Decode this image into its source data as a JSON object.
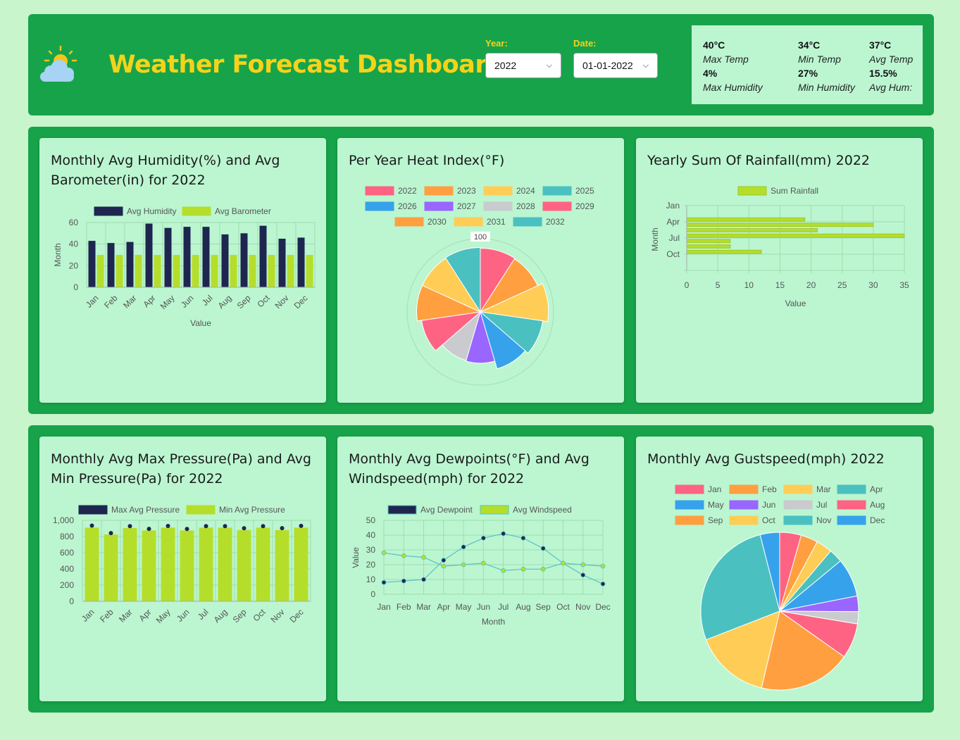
{
  "header": {
    "title": "Weather Forecast Dashboard",
    "year_label": "Year:",
    "year_value": "2022",
    "date_label": "Date:",
    "date_value": "01-01-2022"
  },
  "summary": [
    {
      "value": "40°C",
      "label": "Max Temp"
    },
    {
      "value": "34°C",
      "label": "Min Temp"
    },
    {
      "value": "37°C",
      "label": "Avg Temp"
    },
    {
      "value": "4%",
      "label": "Max Humidity"
    },
    {
      "value": "27%",
      "label": "Min Humidity"
    },
    {
      "value": "15.5%",
      "label": "Avg Hum:"
    }
  ],
  "cards": {
    "humidity_title": "Monthly Avg Humidity(%) and Avg Barometer(in) for 2022",
    "heat_title": "Per Year Heat Index(°F)",
    "rain_title": "Yearly Sum Of Rainfall(mm) 2022",
    "pressure_title": "Monthly Avg Max Pressure(Pa) and Avg Min Pressure(Pa) for 2022",
    "dew_title": "Monthly Avg Dewpoints(°F) and Avg Windspeed(mph) for 2022",
    "gust_title": "Monthly Avg Gustspeed(mph) 2022"
  },
  "chart_data": [
    {
      "id": "humidity",
      "type": "bar",
      "categories": [
        "Jan",
        "Feb",
        "Mar",
        "Apr",
        "May",
        "Jun",
        "Jul",
        "Aug",
        "Sep",
        "Oct",
        "Nov",
        "Dec"
      ],
      "series": [
        {
          "name": "Avg Humidity",
          "color": "#1e2650",
          "values": [
            43,
            41,
            42,
            59,
            55,
            56,
            56,
            49,
            50,
            57,
            45,
            46
          ]
        },
        {
          "name": "Avg Barometer",
          "color": "#b5de2b",
          "values": [
            30,
            30,
            30,
            30,
            30,
            30,
            30,
            30,
            30,
            30,
            30,
            30
          ]
        }
      ],
      "xlabel": "Value",
      "ylabel": "Month",
      "ylim": [
        0,
        60
      ],
      "yticks": [
        "0",
        "20",
        "40",
        "60"
      ]
    },
    {
      "id": "heat",
      "type": "polar-area",
      "categories": [
        "2022",
        "2023",
        "2024",
        "2025",
        "2026",
        "2027",
        "2028",
        "2029",
        "2030",
        "2031",
        "2032"
      ],
      "colors": [
        "#ff6384",
        "#ff9f40",
        "#ffcd56",
        "#4bc0c0",
        "#36a2eb",
        "#9966ff",
        "#c9cbcf",
        "#ff6384",
        "#ff9f40",
        "#ffcd56",
        "#4bc0c0"
      ],
      "values": [
        87,
        86,
        93,
        86,
        81,
        70,
        69,
        81,
        87,
        87,
        88
      ],
      "rmax": 100,
      "tick_label": "100"
    },
    {
      "id": "rain",
      "type": "bar",
      "orientation": "horizontal",
      "categories": [
        "Jan",
        "Feb",
        "Mar",
        "Apr",
        "May",
        "Jun",
        "Jul",
        "Aug",
        "Sep",
        "Oct",
        "Nov",
        "Dec"
      ],
      "series": [
        {
          "name": "Sum Rainfall",
          "color": "#b5de2b",
          "values": [
            0,
            0,
            19,
            30,
            21,
            35,
            7,
            7,
            12,
            0,
            0,
            0
          ]
        }
      ],
      "ytick_labels": [
        "Jan",
        "Apr",
        "Jul",
        "Oct"
      ],
      "xlim": [
        0,
        35
      ],
      "xticks": [
        "0",
        "5",
        "10",
        "15",
        "20",
        "25",
        "30",
        "35"
      ],
      "xlabel": "Value",
      "ylabel": "Month"
    },
    {
      "id": "pressure",
      "type": "bar",
      "categories": [
        "Jan",
        "Feb",
        "Mar",
        "Apr",
        "May",
        "Jun",
        "Jul",
        "Aug",
        "Sep",
        "Oct",
        "Nov",
        "Dec"
      ],
      "series": [
        {
          "name": "Max Avg Pressure",
          "color": "#1e2650",
          "values": [
            935,
            842,
            928,
            895,
            930,
            893,
            928,
            928,
            902,
            928,
            903,
            932
          ]
        },
        {
          "name": "Min Avg Pressure",
          "color": "#b5de2b",
          "values": [
            910,
            825,
            905,
            875,
            910,
            875,
            910,
            910,
            880,
            910,
            880,
            910
          ]
        }
      ],
      "ylim": [
        0,
        1000
      ],
      "yticks": [
        "0",
        "200",
        "400",
        "600",
        "800",
        "1,000"
      ]
    },
    {
      "id": "dew",
      "type": "line",
      "categories": [
        "Jan",
        "Feb",
        "Mar",
        "Apr",
        "May",
        "Jun",
        "Jul",
        "Aug",
        "Sep",
        "Oct",
        "Nov",
        "Dec"
      ],
      "series": [
        {
          "name": "Avg Dewpoint",
          "color": "#1e2650",
          "values": [
            8,
            9,
            10,
            23,
            32,
            38,
            41,
            38,
            31,
            21,
            13,
            7
          ]
        },
        {
          "name": "Avg Windspeed",
          "color": "#b5de2b",
          "values": [
            28,
            26,
            25,
            19,
            20,
            21,
            16,
            17,
            17,
            21,
            20,
            19
          ]
        }
      ],
      "ylim": [
        0,
        50
      ],
      "yticks": [
        "0",
        "10",
        "20",
        "30",
        "40",
        "50"
      ],
      "xlabel": "Month",
      "ylabel": "Value"
    },
    {
      "id": "gust",
      "type": "pie",
      "categories": [
        "Jan",
        "Feb",
        "Mar",
        "Apr",
        "May",
        "Jun",
        "Jul",
        "Aug",
        "Sep",
        "Oct",
        "Nov",
        "Dec"
      ],
      "colors": [
        "#ff6384",
        "#ff9f40",
        "#ffcd56",
        "#4bc0c0",
        "#36a2eb",
        "#9966ff",
        "#c9cbcf",
        "#ff6384",
        "#ff9f40",
        "#ffcd56",
        "#4bc0c0",
        "#36a2eb"
      ],
      "values": [
        4.4,
        3.5,
        3.3,
        2.8,
        7.9,
        3.2,
        2.5,
        7.2,
        18.9,
        15.4,
        26.9,
        4.0
      ]
    }
  ]
}
